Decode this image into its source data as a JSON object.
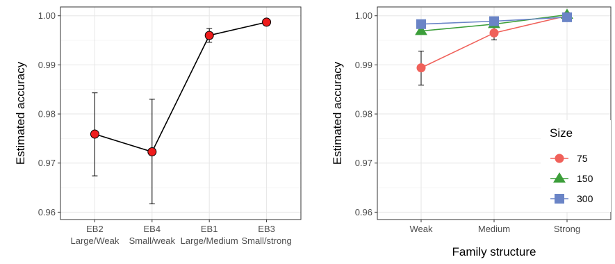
{
  "chart_data": [
    {
      "type": "line",
      "title": "",
      "xlabel": "",
      "ylabel": "Estimated accuracy",
      "categories": [
        [
          "EB2",
          "Large/Weak"
        ],
        [
          "EB4",
          "Small/weak"
        ],
        [
          "EB1",
          "Large/Medium"
        ],
        [
          "EB3",
          "Small/strong"
        ]
      ],
      "series": [
        {
          "values": [
            0.9759,
            0.9723,
            0.996,
            0.9987
          ],
          "error_low": [
            0.9674,
            0.9617,
            0.9946,
            0.9982
          ],
          "error_high": [
            0.9843,
            0.983,
            0.9974,
            0.9992
          ],
          "color": "#000000",
          "marker_fill": "#ee1c1c"
        }
      ],
      "ylim": [
        0.9585,
        1.0018
      ],
      "yticks": [
        0.96,
        0.97,
        0.98,
        0.99,
        1.0
      ],
      "ytick_labels": [
        "0.96",
        "0.97",
        "0.98",
        "0.99",
        "1.00"
      ],
      "grid": true
    },
    {
      "type": "line",
      "title": "",
      "xlabel": "Family structure",
      "ylabel": "Estimated accuracy",
      "categories": [
        "Weak",
        "Medium",
        "Strong"
      ],
      "legend_title": "Size",
      "legend_position": "right",
      "series": [
        {
          "name": "75",
          "values": [
            0.9894,
            0.9965,
            1.0
          ],
          "error_low": [
            0.9859,
            0.9951,
            null
          ],
          "error_high": [
            0.9928,
            0.9978,
            null
          ],
          "color": "#f0615a",
          "marker": "circle"
        },
        {
          "name": "150",
          "values": [
            0.9969,
            0.9983,
            1.0002
          ],
          "error_low": [
            0.9963,
            null,
            null
          ],
          "error_high": [
            0.9976,
            null,
            null
          ],
          "color": "#3c9e3a",
          "marker": "triangle"
        },
        {
          "name": "300",
          "values": [
            0.9983,
            0.9989,
            0.9997
          ],
          "error_low": [
            null,
            null,
            null
          ],
          "error_high": [
            null,
            null,
            null
          ],
          "color": "#6a84c6",
          "marker": "square"
        }
      ],
      "ylim": [
        0.9585,
        1.0018
      ],
      "yticks": [
        0.96,
        0.97,
        0.98,
        0.99,
        1.0
      ],
      "ytick_labels": [
        "0.96",
        "0.97",
        "0.98",
        "0.99",
        "1.00"
      ],
      "grid": true
    }
  ]
}
